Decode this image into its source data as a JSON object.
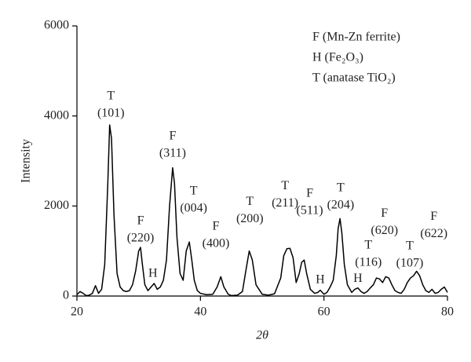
{
  "chart_data": {
    "type": "line",
    "xlabel": "2θ",
    "ylabel": "Intensity",
    "color": "#000000",
    "xlim": [
      20,
      80
    ],
    "xticks": [
      20,
      40,
      60,
      80
    ],
    "ylim": [
      0,
      6000
    ],
    "yticks": [
      0,
      2000,
      4000,
      6000
    ],
    "legend_texts": [
      "F (Mn-Zn ferrite)",
      "H (Fe₂O₃)",
      "T (anatase TiO₂)"
    ],
    "x": [
      20,
      20.5,
      21,
      21.5,
      22,
      22.5,
      23,
      23.5,
      24,
      24.5,
      25,
      25.3,
      25.6,
      26,
      26.5,
      27,
      27.5,
      28,
      28.5,
      29,
      29.5,
      30,
      30.3,
      30.6,
      31,
      31.5,
      32,
      32.5,
      33,
      33.5,
      34,
      34.5,
      35,
      35.5,
      35.8,
      36.2,
      36.7,
      37.2,
      37.7,
      38.2,
      38.6,
      39,
      39.5,
      40,
      41,
      42,
      42.7,
      43.3,
      43.8,
      44.5,
      45,
      46,
      46.8,
      47.4,
      47.9,
      48.4,
      49,
      50,
      51,
      52,
      53,
      53.5,
      54,
      54.5,
      55,
      55.5,
      56,
      56.4,
      56.8,
      57.2,
      57.8,
      58.5,
      59,
      59.4,
      60,
      60.5,
      61,
      61.5,
      62,
      62.3,
      62.6,
      62.9,
      63.3,
      63.8,
      64.5,
      65,
      65.5,
      66,
      66.5,
      67,
      67.5,
      68,
      68.5,
      69,
      69.5,
      70,
      70.5,
      71,
      71.5,
      72,
      72.5,
      73,
      73.5,
      74,
      74.5,
      75,
      75.5,
      76,
      76.5,
      77,
      77.5,
      78,
      78.5,
      79,
      79.5,
      80
    ],
    "values": [
      30,
      100,
      60,
      10,
      20,
      60,
      230,
      60,
      150,
      700,
      2500,
      3800,
      3500,
      1800,
      500,
      200,
      120,
      100,
      120,
      250,
      550,
      1000,
      1080,
      700,
      250,
      120,
      200,
      280,
      150,
      200,
      350,
      800,
      2000,
      2850,
      2500,
      1300,
      500,
      350,
      1000,
      1200,
      800,
      350,
      120,
      60,
      30,
      40,
      200,
      430,
      200,
      40,
      10,
      20,
      100,
      600,
      1000,
      800,
      250,
      40,
      20,
      50,
      400,
      900,
      1050,
      1060,
      850,
      300,
      500,
      750,
      800,
      500,
      150,
      60,
      80,
      130,
      40,
      80,
      200,
      350,
      900,
      1500,
      1720,
      1400,
      700,
      250,
      80,
      150,
      180,
      100,
      60,
      100,
      180,
      250,
      400,
      380,
      300,
      430,
      400,
      250,
      120,
      80,
      60,
      150,
      300,
      400,
      450,
      550,
      450,
      250,
      120,
      80,
      150,
      60,
      80,
      150,
      200,
      80
    ],
    "annotations": [
      {
        "label": "T",
        "hkl": "(101)",
        "x": 25.5,
        "y": 4430
      },
      {
        "label": "F",
        "hkl": "(220)",
        "x": 30.3,
        "y": 1660
      },
      {
        "label": "H",
        "x": 32.3,
        "y": 490
      },
      {
        "label": "F",
        "hkl": "(311)",
        "x": 35.5,
        "y": 3540
      },
      {
        "label": "T",
        "hkl": "(004)",
        "x": 38.9,
        "y": 2320
      },
      {
        "label": "F",
        "hkl": "(400)",
        "x": 42.5,
        "y": 1540
      },
      {
        "label": "T",
        "hkl": "(200)",
        "x": 48,
        "y": 2090
      },
      {
        "label": "T",
        "hkl": "(211)",
        "x": 53.7,
        "y": 2440
      },
      {
        "label": "F",
        "hkl": "(511)",
        "x": 57.7,
        "y": 2270
      },
      {
        "label": "H",
        "x": 59.4,
        "y": 350
      },
      {
        "label": "T",
        "hkl": "(204)",
        "x": 62.7,
        "y": 2390
      },
      {
        "label": "H",
        "x": 65.5,
        "y": 380
      },
      {
        "label": "T",
        "hkl": "(116)",
        "x": 67.2,
        "y": 1120
      },
      {
        "label": "F",
        "hkl": "(620)",
        "x": 69.8,
        "y": 1830
      },
      {
        "label": "T",
        "hkl": "(107)",
        "x": 73.9,
        "y": 1100
      },
      {
        "label": "F",
        "hkl": "(622)",
        "x": 77.8,
        "y": 1760
      }
    ]
  }
}
